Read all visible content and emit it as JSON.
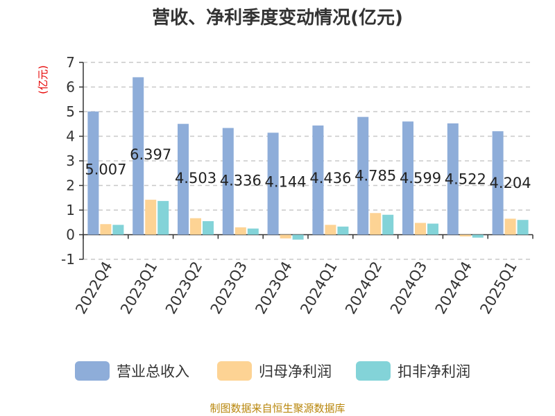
{
  "chart_data": {
    "type": "bar",
    "title": "营收、净利季度变动情况(亿元)",
    "ylabel": "(亿元)",
    "xlabel": "",
    "ylim": [
      -1,
      7
    ],
    "yticks": [
      -1,
      0,
      1,
      2,
      3,
      4,
      5,
      6,
      7
    ],
    "grid": true,
    "legend_position": "bottom",
    "categories": [
      "2022Q4",
      "2023Q1",
      "2023Q2",
      "2023Q3",
      "2023Q4",
      "2024Q1",
      "2024Q2",
      "2024Q3",
      "2024Q4",
      "2025Q1"
    ],
    "series": [
      {
        "name": "营业总收入",
        "color": "#8eadd9",
        "values": [
          5.007,
          6.397,
          4.503,
          4.336,
          4.144,
          4.436,
          4.785,
          4.599,
          4.522,
          4.204
        ],
        "labels": [
          "5.007",
          "6.397",
          "4.503",
          "4.336",
          "4.144",
          "4.436",
          "4.785",
          "4.599",
          "4.522",
          "4.204"
        ]
      },
      {
        "name": "归母净利润",
        "color": "#fdd394",
        "values": [
          0.43,
          1.42,
          0.67,
          0.3,
          -0.15,
          0.4,
          0.88,
          0.48,
          -0.07,
          0.65
        ]
      },
      {
        "name": "扣非净利润",
        "color": "#83d3d8",
        "values": [
          0.4,
          1.37,
          0.55,
          0.25,
          -0.2,
          0.33,
          0.81,
          0.45,
          -0.12,
          0.6
        ]
      }
    ],
    "source": "制图数据来自恒生聚源数据库"
  }
}
